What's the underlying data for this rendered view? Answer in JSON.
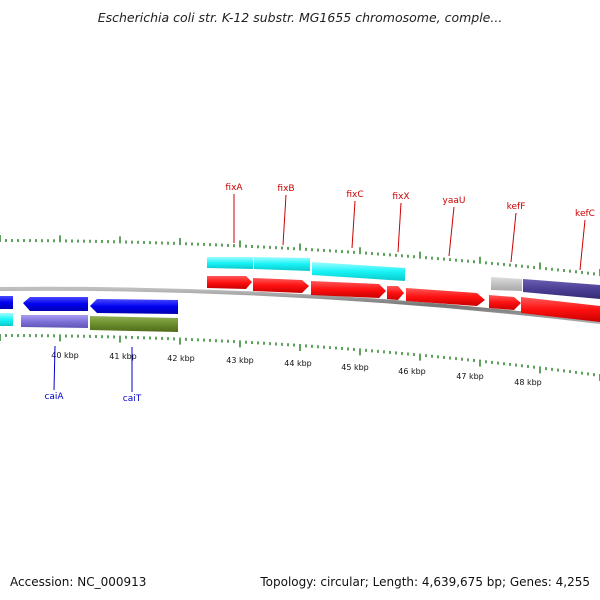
{
  "title": "Escherichia coli str. K-12 substr. MG1655 chromosome, comple...",
  "footer": {
    "accession": "Accession: NC_000913",
    "summary": "Topology: circular; Length: 4,639,675 bp; Genes: 4,255"
  },
  "colors": {
    "forward_cds": "#ff0000",
    "forward_gene": "#00ffff",
    "reverse_cds": "#0000ff",
    "backbone": "#888888",
    "ticks": "#1a7a1a",
    "label_forward": "#cc0000",
    "label_reverse": "#0000cc"
  },
  "scale_labels": [
    "40 kbp",
    "41 kbp",
    "42 kbp",
    "43 kbp",
    "44 kbp",
    "45 kbp",
    "46 kbp",
    "47 kbp",
    "48 kbp"
  ],
  "forward_gene_labels": [
    "fixA",
    "fixB",
    "fixC",
    "fixX",
    "yaaU",
    "kefF",
    "kefC"
  ],
  "reverse_gene_labels": [
    "caiA",
    "caiT"
  ]
}
